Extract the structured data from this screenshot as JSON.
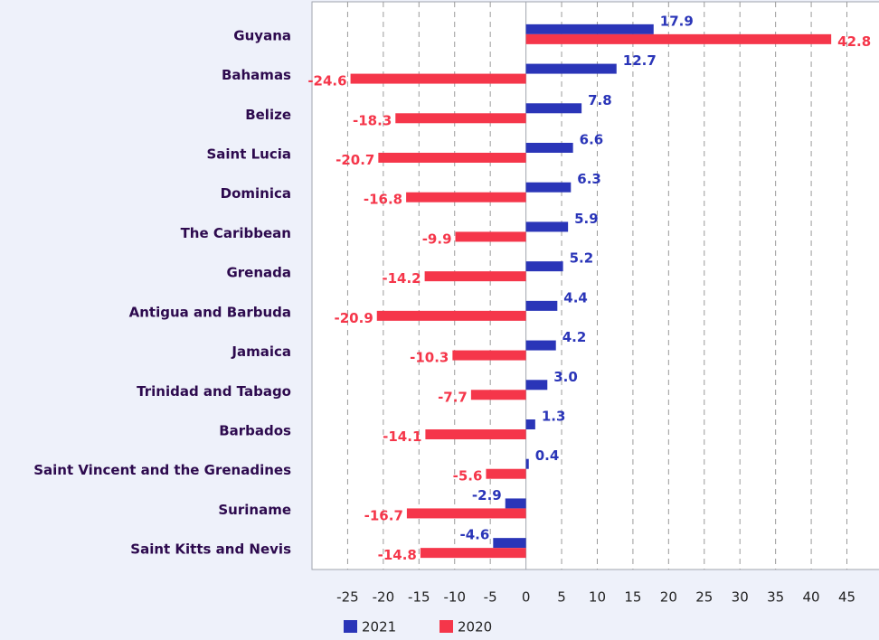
{
  "chart_data": {
    "type": "hbar",
    "categories": [
      "Guyana",
      "Bahamas",
      "Belize",
      "Saint Lucia",
      "Dominica",
      "The Caribbean",
      "Grenada",
      "Antigua and Barbuda",
      "Jamaica",
      "Trinidad and Tabago",
      "Barbados",
      "Saint Vincent and the Grenadines",
      "Suriname",
      "Saint Kitts and Nevis"
    ],
    "series": [
      {
        "name": "2021",
        "color": "#2a35b8",
        "values": [
          17.9,
          12.7,
          7.8,
          6.6,
          6.3,
          5.9,
          5.2,
          4.4,
          4.2,
          3.0,
          1.3,
          0.4,
          -2.9,
          -4.6
        ],
        "value_labels": [
          "17.9",
          "12.7",
          "7.8",
          "6.6",
          "6.3",
          "5.9",
          "5.2",
          "4.4",
          "4.2",
          "3.0",
          "1.3",
          "0.4",
          "-2.9",
          "-4.6"
        ]
      },
      {
        "name": "2020",
        "color": "#f5364a",
        "values": [
          42.8,
          -24.6,
          -18.3,
          -20.7,
          -16.8,
          -9.9,
          -14.2,
          -20.9,
          -10.3,
          -7.7,
          -14.1,
          -5.6,
          -16.7,
          -14.8
        ]
      }
    ],
    "xlim": [
      -30,
      49.5
    ],
    "xticks": [
      -25,
      -20,
      -15,
      -10,
      -5,
      0,
      5,
      10,
      15,
      20,
      25,
      30,
      35,
      40,
      45
    ],
    "grid": true,
    "legend": "bottom"
  }
}
